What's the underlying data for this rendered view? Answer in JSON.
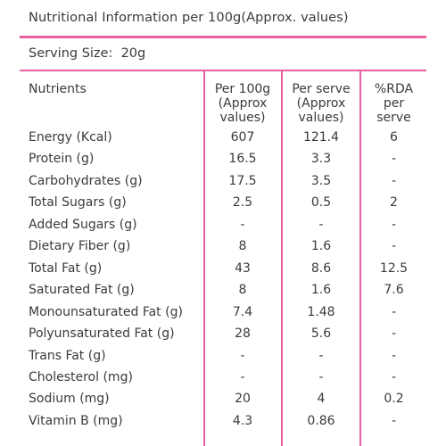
{
  "title": "Nutritional Information per 100g(Approx. values)",
  "serving": "Serving Size:  20g",
  "headers": {
    "nutrients": "Nutrients",
    "per100_1": "Per 100g",
    "per100_2": "(Approx",
    "per100_3": "values)",
    "perserve_1": "Per serve",
    "perserve_2": "(Approx",
    "perserve_3": "values)",
    "rda_1": "%RDA",
    "rda_2": "per",
    "rda_3": "serve"
  },
  "rows": [
    {
      "name": "Energy (Kcal)",
      "per100": "607",
      "perserve": "121.4",
      "rda": "6"
    },
    {
      "name": "Protein (g)",
      "per100": "16.5",
      "perserve": "3.3",
      "rda": "-"
    },
    {
      "name": "Carbohydrates (g)",
      "per100": "17.5",
      "perserve": "3.5",
      "rda": "-"
    },
    {
      "name": "Total Sugars (g)",
      "per100": "2.5",
      "perserve": "0.5",
      "rda": "2"
    },
    {
      "name": "Added Sugars (g)",
      "per100": "-",
      "perserve": "-",
      "rda": "-"
    },
    {
      "name": "Dietary Fiber (g)",
      "per100": "8",
      "perserve": "1.6",
      "rda": "-"
    },
    {
      "name": "Total Fat (g)",
      "per100": "43",
      "perserve": "8.6",
      "rda": "12.5"
    },
    {
      "name": "Saturated Fat (g)",
      "per100": "8",
      "perserve": "1.6",
      "rda": "7.6"
    },
    {
      "name": "Monounsaturated Fat (g)",
      "per100": "7.4",
      "perserve": "1.48",
      "rda": "-"
    },
    {
      "name": "Polyunsaturated Fat (g)",
      "per100": "28",
      "perserve": "5.6",
      "rda": "-"
    },
    {
      "name": "Trans Fat (g)",
      "per100": "-",
      "perserve": "-",
      "rda": "-"
    },
    {
      "name": "Cholesterol (mg)",
      "per100": "-",
      "perserve": "-",
      "rda": "-"
    },
    {
      "name": "Sodium (mg)",
      "per100": "20",
      "perserve": "4",
      "rda": "0.2"
    },
    {
      "name": "Vitamin B (mg)",
      "per100": "4.3",
      "perserve": "0.86",
      "rda": "-"
    }
  ],
  "colors": {
    "accent": "#e8609f",
    "text": "#3a3a3a"
  }
}
